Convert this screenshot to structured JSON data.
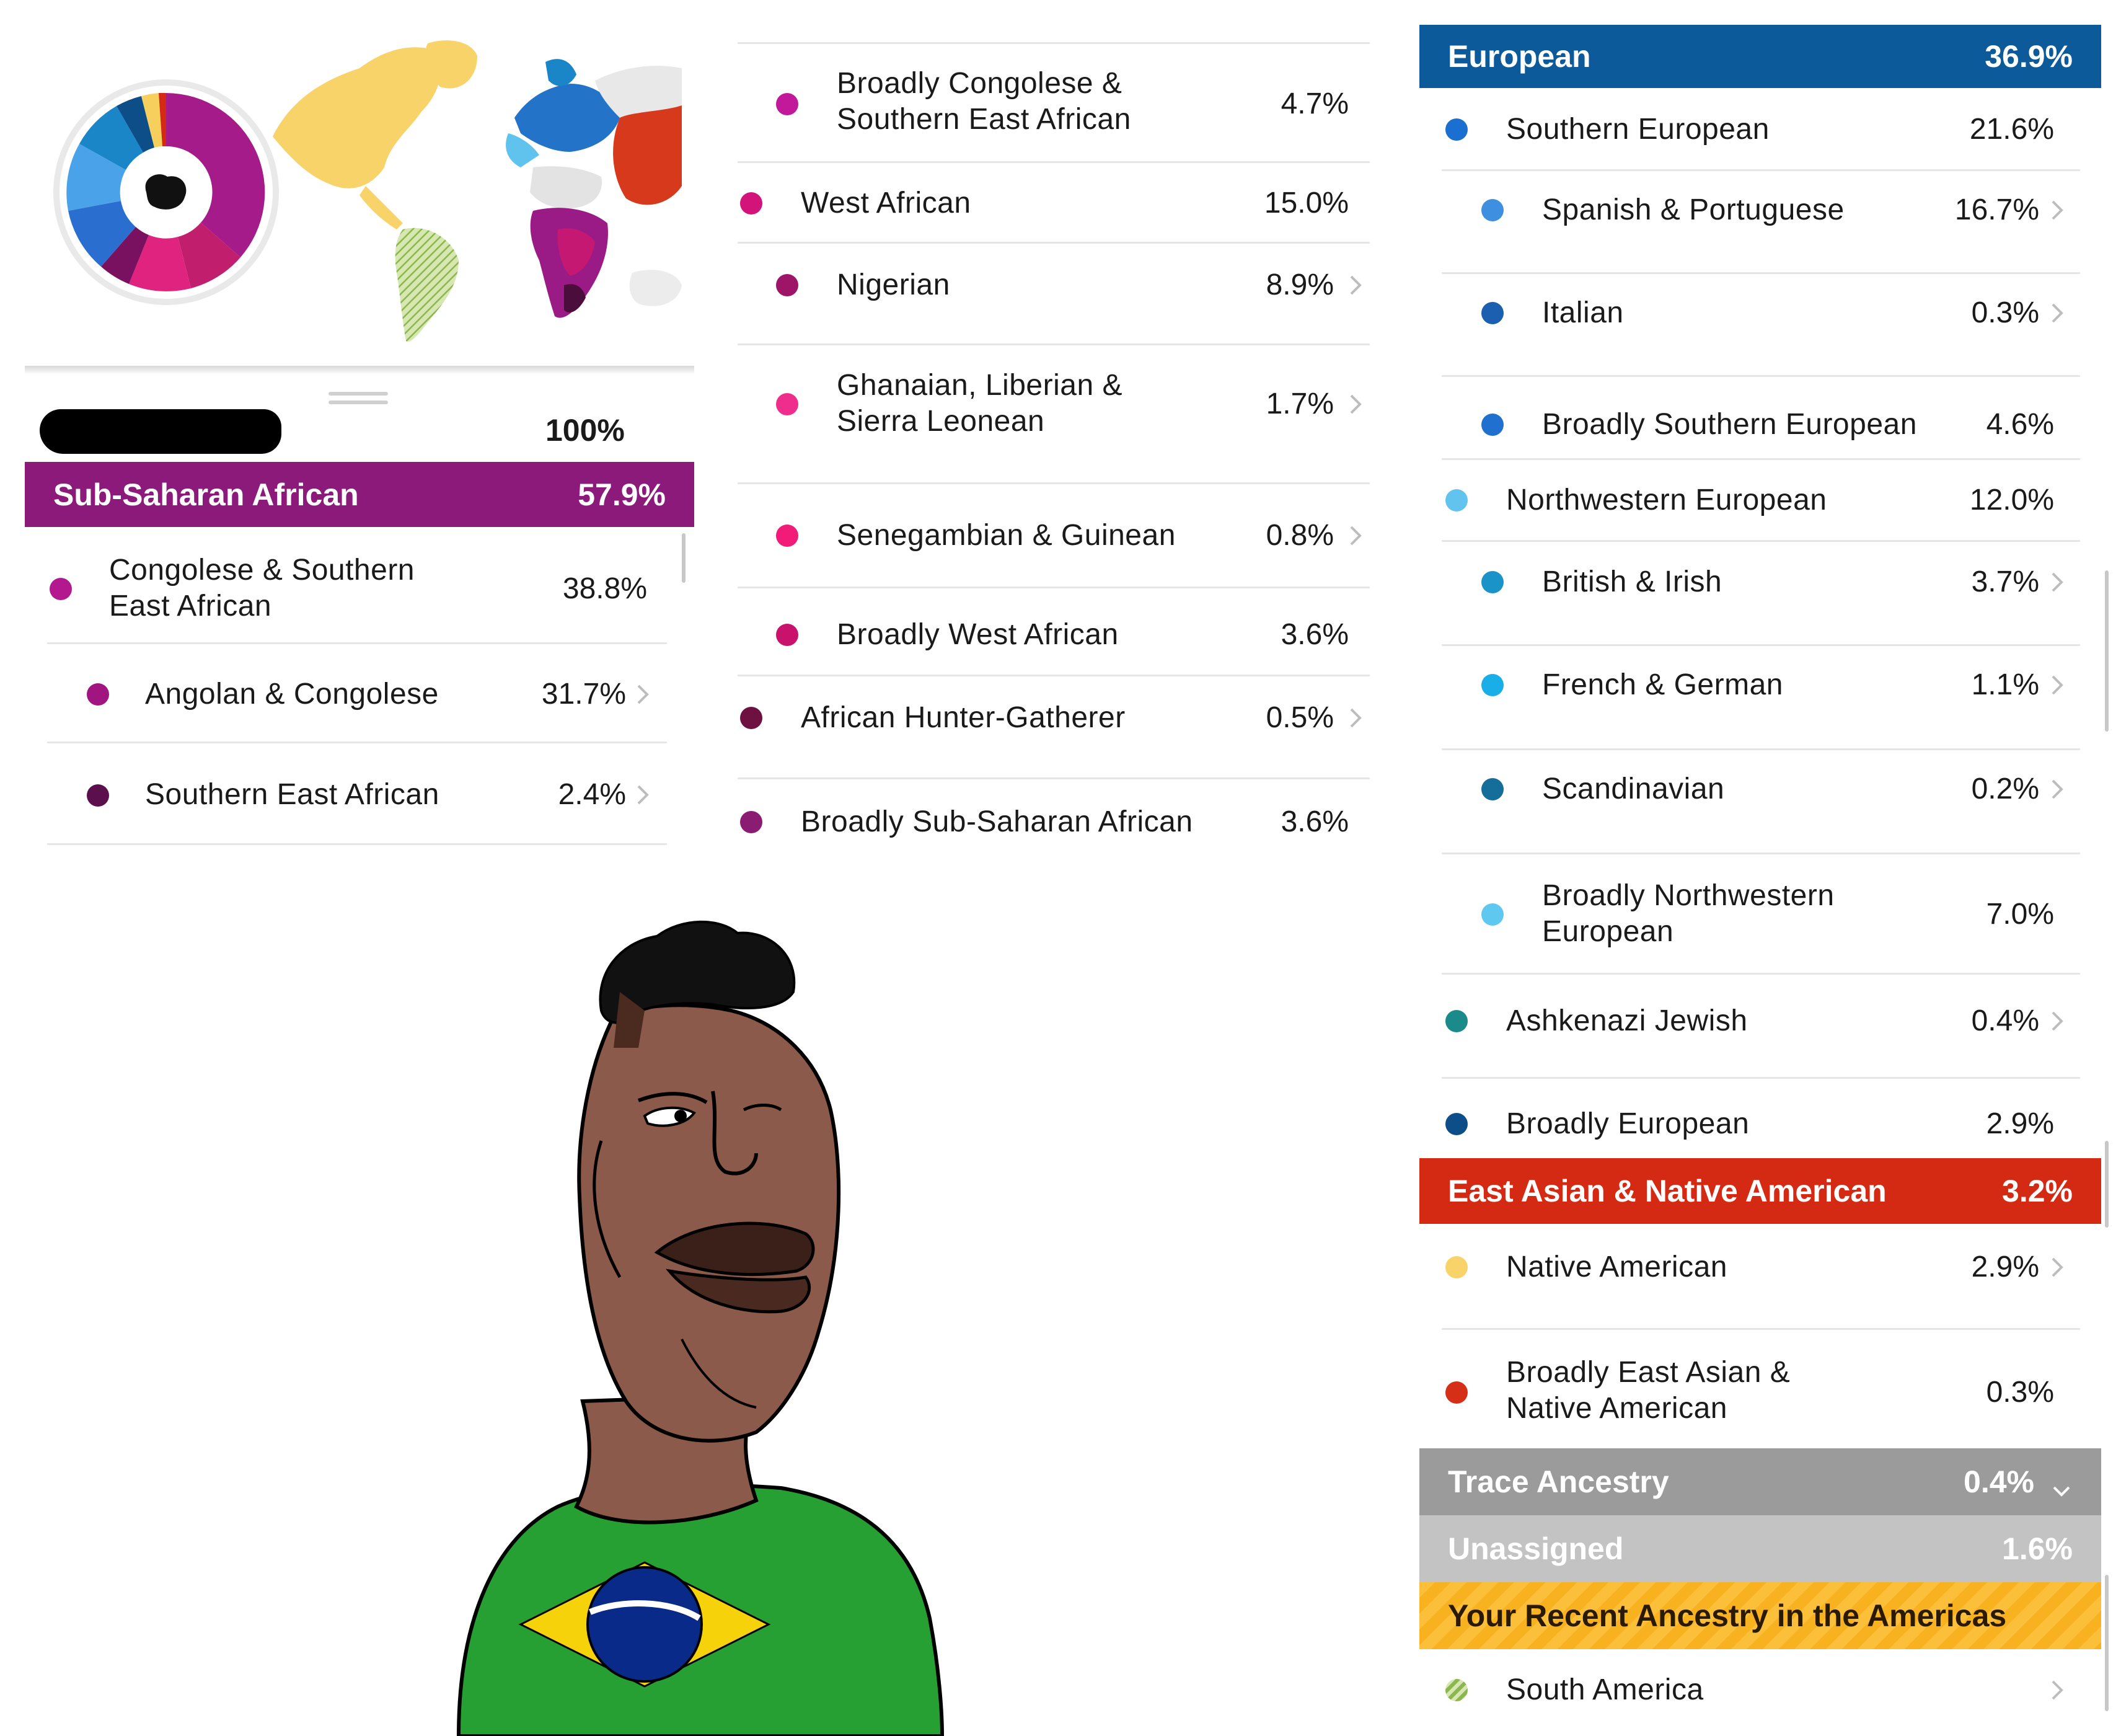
{
  "column1": {
    "total_pct": "100%",
    "banner": {
      "label": "Sub-Saharan African",
      "pct": "57.9%",
      "color": "#8b1a7a"
    },
    "rows": [
      {
        "label_line1": "Congolese & Southern",
        "label_line2": "East African",
        "pct": "38.8%",
        "dot": "#b3188f"
      },
      {
        "label": "Angolan & Congolese",
        "pct": "31.7%",
        "dot": "#a0157f"
      },
      {
        "label": "Southern East African",
        "pct": "2.4%",
        "dot": "#5b0f4c"
      }
    ]
  },
  "column2": {
    "rows": [
      {
        "label_line1": "Broadly Congolese &",
        "label_line2": "Southern East African",
        "pct": "4.7%",
        "dot": "#c2189a"
      },
      {
        "label": "West African",
        "pct": "15.0%",
        "dot": "#d3127a"
      },
      {
        "label": "Nigerian",
        "pct": "8.9%",
        "dot": "#9e1466"
      },
      {
        "label_line1": "Ghanaian, Liberian &",
        "label_line2": "Sierra Leonean",
        "pct": "1.7%",
        "dot": "#ee2d8c"
      },
      {
        "label": "Senegambian & Guinean",
        "pct": "0.8%",
        "dot": "#f21c78"
      },
      {
        "label": "Broadly West African",
        "pct": "3.6%",
        "dot": "#c8126c"
      },
      {
        "label": "African Hunter-Gatherer",
        "pct": "0.5%",
        "dot": "#6e1040"
      },
      {
        "label": "Broadly Sub-Saharan African",
        "pct": "3.6%",
        "dot": "#8a1c72"
      }
    ]
  },
  "column3": {
    "european_banner": {
      "label": "European",
      "pct": "36.9%",
      "color": "#0d5a9a"
    },
    "rows": [
      {
        "label": "Southern European",
        "pct": "21.6%",
        "dot": "#1b6fd0"
      },
      {
        "label": "Spanish & Portuguese",
        "pct": "16.7%",
        "dot": "#3f8fe0"
      },
      {
        "label": "Italian",
        "pct": "0.3%",
        "dot": "#1c5fb0"
      },
      {
        "label": "Broadly Southern European",
        "pct": "4.6%",
        "dot": "#2070d0"
      },
      {
        "label": "Northwestern European",
        "pct": "12.0%",
        "dot": "#62c3ee"
      },
      {
        "label": "British & Irish",
        "pct": "3.7%",
        "dot": "#1a94c8"
      },
      {
        "label": "French & German",
        "pct": "1.1%",
        "dot": "#1aaee8"
      },
      {
        "label": "Scandinavian",
        "pct": "0.2%",
        "dot": "#156e9a"
      },
      {
        "label_line1": "Broadly Northwestern",
        "label_line2": "European",
        "pct": "7.0%",
        "dot": "#5fc8f0"
      },
      {
        "label": "Ashkenazi Jewish",
        "pct": "0.4%",
        "dot": "#1a8a8a"
      },
      {
        "label": "Broadly European",
        "pct": "2.9%",
        "dot": "#0d4e88"
      }
    ],
    "east_asian_banner": {
      "label": "East Asian & Native American",
      "pct": "3.2%",
      "color": "#d42a14"
    },
    "rows2": [
      {
        "label": "Native American",
        "pct": "2.9%",
        "dot": "#f8d36a"
      },
      {
        "label_line1": "Broadly East Asian &",
        "label_line2": "Native American",
        "pct": "0.3%",
        "dot": "#d52f18"
      }
    ],
    "trace": {
      "label": "Trace Ancestry",
      "pct": "0.4%",
      "color": "#9b9b9b"
    },
    "unassigned": {
      "label": "Unassigned",
      "pct": "1.6%",
      "color": "#c3c3c3"
    },
    "recent": {
      "label": "Your Recent Ancestry in the Americas",
      "color": "#fbbf3a"
    },
    "south_america": {
      "label": "South America"
    }
  },
  "icons": {
    "chevron": "chevron-right-icon",
    "chevron_down": "chevron-down-icon"
  }
}
